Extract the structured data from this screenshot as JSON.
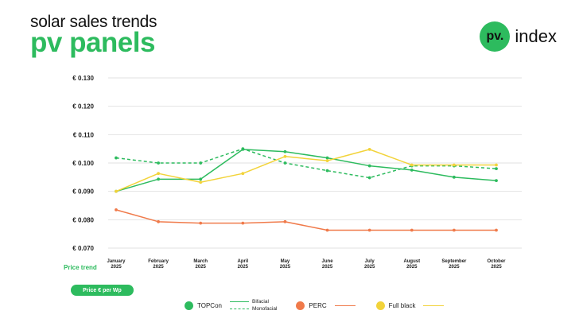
{
  "header": {
    "subtitle": "solar sales trends",
    "title": "pv panels"
  },
  "logo": {
    "mark": "pv.",
    "text": "index"
  },
  "price_trend_label": "Price trend",
  "unit_badge": "Price € per Wp",
  "colors": {
    "brand": "#2dbb5e",
    "topcon": "#2dbb5e",
    "perc": "#f07a4a",
    "fullblack": "#f2d33a",
    "grid": "#e2e2e2"
  },
  "legend": {
    "topcon": "TOPCon",
    "bifacial": "Bifacial",
    "monofacial": "Monofacial",
    "perc": "PERC",
    "fullblack": "Full black"
  },
  "chart_data": {
    "type": "line",
    "x": [
      [
        "January",
        "2025"
      ],
      [
        "February",
        "2025"
      ],
      [
        "March",
        "2025"
      ],
      [
        "April",
        "2025"
      ],
      [
        "May",
        "2025"
      ],
      [
        "June",
        "2025"
      ],
      [
        "July",
        "2025"
      ],
      [
        "August",
        "2025"
      ],
      [
        "September",
        "2025"
      ],
      [
        "October",
        "2025"
      ]
    ],
    "ylim": [
      0.07,
      0.13
    ],
    "yticks": [
      0.07,
      0.08,
      0.09,
      0.1,
      0.11,
      0.12,
      0.13
    ],
    "ytick_labels": [
      "€ 0.070",
      "€ 0.080",
      "€ 0.090",
      "€ 0.100",
      "€ 0.110",
      "€ 0.120",
      "€ 0.130"
    ],
    "grid": "horizontal",
    "legend_position": "bottom",
    "series": [
      {
        "key": "topcon_bifacial",
        "color": "#2dbb5e",
        "dashed": false,
        "values": [
          0.09,
          0.0943,
          0.0943,
          0.1048,
          0.104,
          0.1018,
          0.099,
          0.0975,
          0.095,
          0.0938
        ]
      },
      {
        "key": "topcon_monofacial",
        "color": "#2dbb5e",
        "dashed": true,
        "values": [
          0.1018,
          0.1,
          0.1,
          0.105,
          0.1,
          0.0973,
          0.0948,
          0.099,
          0.099,
          0.098
        ]
      },
      {
        "key": "perc",
        "color": "#f07a4a",
        "dashed": false,
        "values": [
          0.0835,
          0.0793,
          0.0788,
          0.0788,
          0.0793,
          0.0763,
          0.0763,
          0.0763,
          0.0763,
          0.0763
        ]
      },
      {
        "key": "fullblack",
        "color": "#f2d33a",
        "dashed": false,
        "values": [
          0.09,
          0.0963,
          0.0932,
          0.0963,
          0.1023,
          0.1008,
          0.1048,
          0.0993,
          0.0993,
          0.0993
        ]
      }
    ]
  }
}
